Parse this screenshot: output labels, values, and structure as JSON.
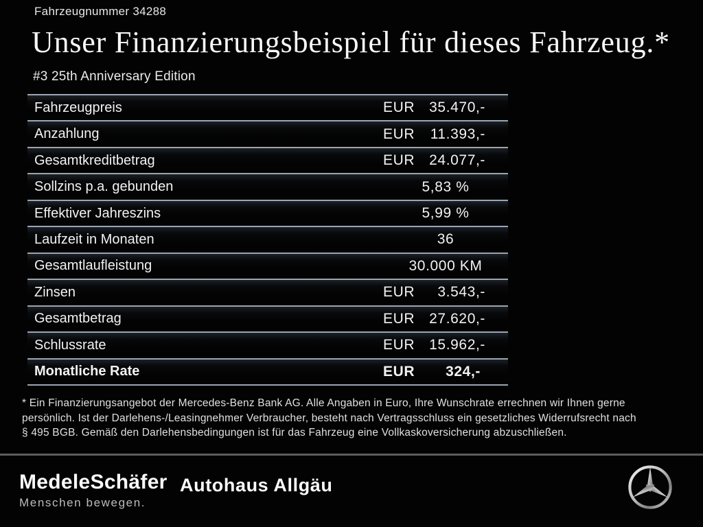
{
  "header": {
    "vehicle_number": "Fahrzeugnummer 34288",
    "title": "Unser Finanzierungsbeispiel für dieses Fahrzeug.*",
    "subtitle": "#3 25th Anniversary Edition"
  },
  "table": {
    "rows": [
      {
        "label": "Fahrzeugpreis",
        "currency": "EUR",
        "value": "35.470,-",
        "emphasis": false
      },
      {
        "label": "Anzahlung",
        "currency": "EUR",
        "value": "11.393,-",
        "emphasis": false
      },
      {
        "label": "Gesamtkreditbetrag",
        "currency": "EUR",
        "value": "24.077,-",
        "emphasis": false
      },
      {
        "label": "Sollzins p.a. gebunden",
        "currency": null,
        "value": "5,83 %",
        "emphasis": false
      },
      {
        "label": "Effektiver Jahreszins",
        "currency": null,
        "value": "5,99 %",
        "emphasis": false
      },
      {
        "label": "Laufzeit in Monaten",
        "currency": null,
        "value": "36",
        "emphasis": false
      },
      {
        "label": "Gesamtlaufleistung",
        "currency": null,
        "value": "30.000 KM",
        "emphasis": false
      },
      {
        "label": "Zinsen",
        "currency": "EUR",
        "value": "3.543,-",
        "emphasis": false
      },
      {
        "label": "Gesamtbetrag",
        "currency": "EUR",
        "value": "27.620,-",
        "emphasis": false
      },
      {
        "label": "Schlussrate",
        "currency": "EUR",
        "value": "15.962,-",
        "emphasis": false
      },
      {
        "label": "Monatliche Rate",
        "currency": "EUR",
        "value": "324,-",
        "emphasis": true
      }
    ]
  },
  "footnote": {
    "lines": [
      "* Ein Finanzierungsangebot der Mercedes-Benz Bank AG. Alle Angaben in Euro, Ihre Wunschrate errechnen wir Ihnen gerne",
      "persönlich. Ist der Darlehens-/Leasingnehmer Verbraucher, besteht nach Vertragsschluss ein gesetzliches Widerrufsrecht nach",
      "§ 495 BGB. Gemäß den Darlehensbedingungen ist für das Fahrzeug eine Vollkaskoversicherung abzuschließen."
    ]
  },
  "footer": {
    "dealer_primary": "MedeleSchäfer",
    "dealer_tagline": "Menschen bewegen.",
    "dealer_secondary": "Autohaus Allgäu",
    "brand_icon": "mercedes-star-icon"
  },
  "colors": {
    "background": "#030303",
    "text": "#f0f0f0",
    "table_divider": "#9ba6b3",
    "footer_divider": "#5c5c5c",
    "tagline_text": "#bcbcbc"
  }
}
